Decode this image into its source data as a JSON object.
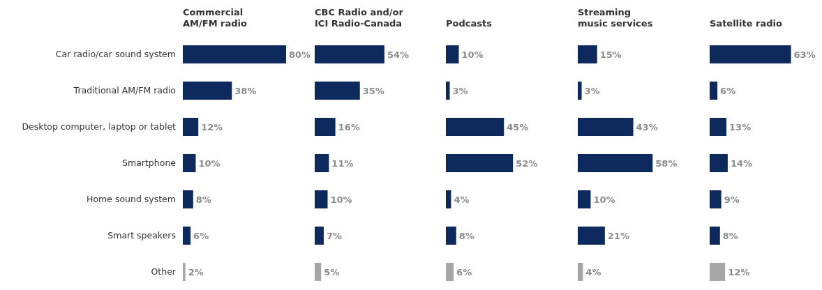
{
  "chart_data": [
    {
      "type": "bar",
      "orientation": "horizontal",
      "title": "Commercial\nAM/FM radio",
      "categories": [
        "Car radio/car sound system",
        "Traditional AM/FM radio",
        "Desktop computer, laptop or tablet",
        "Smartphone",
        "Home sound system",
        "Smart speakers",
        "Other"
      ],
      "values": [
        80,
        38,
        12,
        10,
        8,
        6,
        2
      ],
      "value_labels": [
        "80%",
        "38%",
        "12%",
        "10%",
        "8%",
        "6%",
        "2%"
      ],
      "colors": [
        "#0e2a5c",
        "#0e2a5c",
        "#0e2a5c",
        "#0e2a5c",
        "#0e2a5c",
        "#0e2a5c",
        "#a6a6a6"
      ],
      "tick_labels": "y"
    },
    {
      "type": "bar",
      "orientation": "horizontal",
      "title": "CBC Radio and/or\nICI Radio-Canada",
      "categories": [
        null,
        null,
        null,
        null,
        null,
        null,
        null
      ],
      "values": [
        54,
        35,
        16,
        11,
        10,
        7,
        5
      ],
      "value_labels": [
        "54%",
        "35%",
        "16%",
        "11%",
        "10%",
        "7%",
        "5%"
      ],
      "colors": [
        "#0e2a5c",
        "#0e2a5c",
        "#0e2a5c",
        "#0e2a5c",
        "#0e2a5c",
        "#0e2a5c",
        "#a6a6a6"
      ],
      "tick_labels": false
    },
    {
      "type": "bar",
      "orientation": "horizontal",
      "title": "Podcasts",
      "categories": [
        null,
        null,
        null,
        null,
        null,
        null,
        null
      ],
      "values": [
        10,
        3,
        45,
        52,
        4,
        8,
        6
      ],
      "value_labels": [
        "10%",
        "3%",
        "45%",
        "52%",
        "4%",
        "8%",
        "6%"
      ],
      "colors": [
        "#0e2a5c",
        "#0e2a5c",
        "#0e2a5c",
        "#0e2a5c",
        "#0e2a5c",
        "#0e2a5c",
        "#a6a6a6"
      ],
      "tick_labels": false
    },
    {
      "type": "bar",
      "orientation": "horizontal",
      "title": "Streaming\nmusic services",
      "categories": [
        null,
        null,
        null,
        null,
        null,
        null,
        null
      ],
      "values": [
        15,
        3,
        43,
        58,
        10,
        21,
        4
      ],
      "value_labels": [
        "15%",
        "3%",
        "43%",
        "58%",
        "10%",
        "21%",
        "4%"
      ],
      "colors": [
        "#0e2a5c",
        "#0e2a5c",
        "#0e2a5c",
        "#0e2a5c",
        "#0e2a5c",
        "#0e2a5c",
        "#a6a6a6"
      ],
      "tick_labels": false
    },
    {
      "type": "bar",
      "orientation": "horizontal",
      "title": "Satellite radio",
      "categories": [
        null,
        null,
        null,
        null,
        null,
        null,
        null
      ],
      "values": [
        63,
        6,
        13,
        14,
        9,
        8,
        12
      ],
      "value_labels": [
        "63%",
        "6%",
        "13%",
        "14%",
        "9%",
        "8%",
        "12%"
      ],
      "colors": [
        "#0e2a5c",
        "#0e2a5c",
        "#0e2a5c",
        "#0e2a5c",
        "#0e2a5c",
        "#0e2a5c",
        "#a6a6a6"
      ],
      "tick_labels": false
    }
  ]
}
